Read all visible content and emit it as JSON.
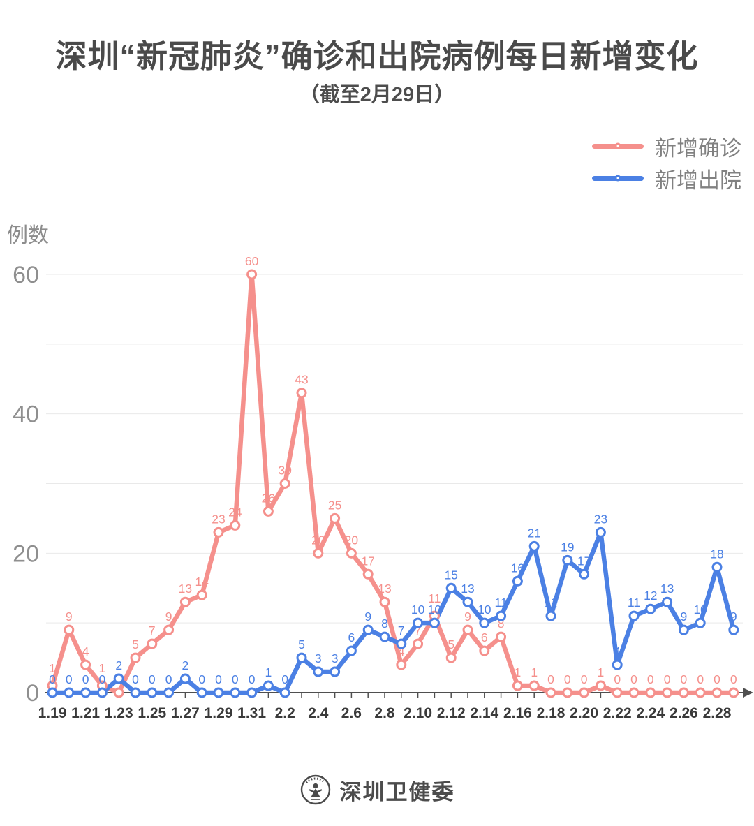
{
  "title": "深圳“新冠肺炎”确诊和出院病例每日新增变化",
  "subtitle": "（截至2月29日）",
  "y_axis_title": "例数",
  "footer_brand": "深圳卫健委",
  "colors": {
    "confirmed": "#F5908C",
    "discharged": "#4B80E4",
    "grid": "#E9E9E9",
    "axis": "#4F4F4F",
    "title": "#4A4A4A",
    "y_tick_label": "#8F8F8F",
    "x_tick_label": "#3A3A3A",
    "legend_label": "#818181"
  },
  "legend": [
    {
      "label": "新增确诊",
      "color": "#F5908C"
    },
    {
      "label": "新增出院",
      "color": "#4B80E4"
    }
  ],
  "chart_data": {
    "type": "line",
    "title": "深圳“新冠肺炎”确诊和出院病例每日新增变化",
    "subtitle": "（截至2月29日）",
    "ylabel": "例数",
    "ylim": [
      0,
      60
    ],
    "yticks": [
      0,
      20,
      40,
      60
    ],
    "gridline_step": 10,
    "grid": true,
    "point_labels": true,
    "legend_position": "top-right",
    "x_label_every": 2,
    "x": [
      "1.19",
      "1.20",
      "1.21",
      "1.22",
      "1.23",
      "1.24",
      "1.25",
      "1.26",
      "1.27",
      "1.28",
      "1.29",
      "1.30",
      "1.31",
      "2.1",
      "2.2",
      "2.3",
      "2.4",
      "2.5",
      "2.6",
      "2.7",
      "2.8",
      "2.9",
      "2.10",
      "2.11",
      "2.12",
      "2.13",
      "2.14",
      "2.15",
      "2.16",
      "2.17",
      "2.18",
      "2.19",
      "2.20",
      "2.21",
      "2.22",
      "2.23",
      "2.24",
      "2.25",
      "2.26",
      "2.27",
      "2.28",
      "2.29"
    ],
    "series": [
      {
        "name": "新增确诊",
        "color": "#F5908C",
        "values": [
          1,
          9,
          4,
          1,
          0,
          5,
          7,
          9,
          13,
          14,
          23,
          24,
          60,
          26,
          30,
          43,
          20,
          25,
          20,
          17,
          13,
          4,
          7,
          11,
          5,
          9,
          6,
          8,
          1,
          1,
          0,
          0,
          0,
          1,
          0,
          0,
          0,
          0,
          0,
          0,
          0,
          0
        ]
      },
      {
        "name": "新增出院",
        "color": "#4B80E4",
        "values": [
          0,
          0,
          0,
          0,
          2,
          0,
          0,
          0,
          2,
          0,
          0,
          0,
          0,
          1,
          0,
          5,
          3,
          3,
          6,
          9,
          8,
          7,
          10,
          10,
          15,
          13,
          10,
          11,
          16,
          21,
          11,
          19,
          17,
          23,
          4,
          11,
          12,
          13,
          9,
          10,
          18,
          9
        ]
      }
    ]
  }
}
